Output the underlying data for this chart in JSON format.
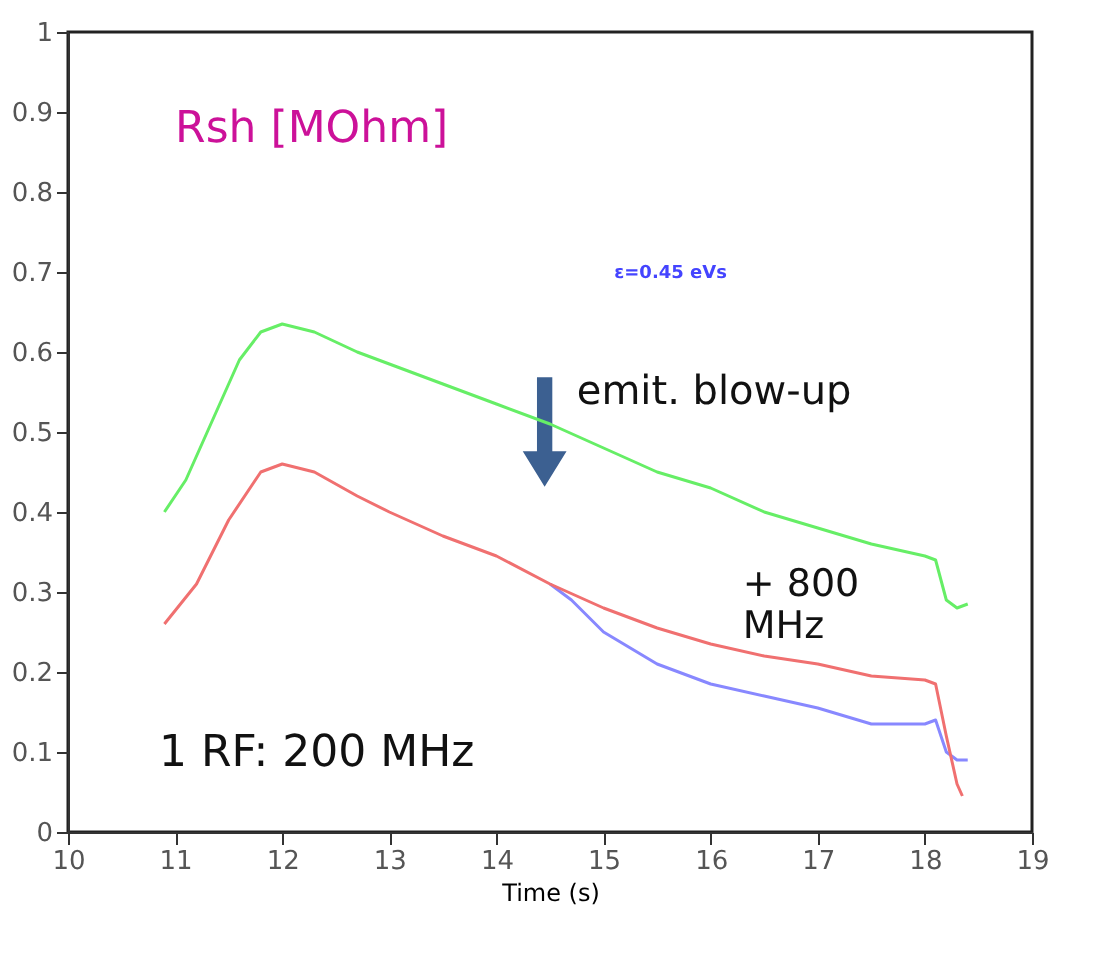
{
  "chart_data": {
    "type": "line",
    "xlabel": "Time (s)",
    "xlim": [
      10,
      19
    ],
    "xticks": [
      10,
      11,
      12,
      13,
      14,
      15,
      16,
      17,
      18,
      19
    ],
    "ylim": [
      0,
      1
    ],
    "yticks": [
      0,
      0.1,
      0.2,
      0.3,
      0.4,
      0.5,
      0.6,
      0.7,
      0.8,
      0.9,
      1
    ],
    "grid": false,
    "legend": false,
    "marker": "none",
    "line_style": "solid",
    "annotations": [
      "Rsh [MOhm]",
      "ε=0.45 eVs",
      "emit. blow-up",
      "+ 800 MHz",
      "1 RF: 200 MHz"
    ],
    "series": [
      {
        "color": "#66ee66",
        "x": [
          10.9,
          11.1,
          11.3,
          11.6,
          11.8,
          12.0,
          12.3,
          12.7,
          13.0,
          13.5,
          14.0,
          14.5,
          15.0,
          15.5,
          16.0,
          16.5,
          17.0,
          17.5,
          18.0,
          18.1,
          18.2,
          18.3,
          18.4
        ],
        "values": [
          0.4,
          0.44,
          0.5,
          0.59,
          0.625,
          0.635,
          0.625,
          0.6,
          0.585,
          0.56,
          0.535,
          0.51,
          0.48,
          0.45,
          0.43,
          0.4,
          0.38,
          0.36,
          0.345,
          0.34,
          0.29,
          0.28,
          0.285
        ]
      },
      {
        "color": "#8888ff",
        "x": [
          14.5,
          14.7,
          15.0,
          15.5,
          16.0,
          16.5,
          17.0,
          17.5,
          18.0,
          18.1,
          18.2,
          18.3,
          18.4
        ],
        "values": [
          0.31,
          0.29,
          0.25,
          0.21,
          0.185,
          0.17,
          0.155,
          0.135,
          0.135,
          0.14,
          0.1,
          0.09,
          0.09
        ]
      },
      {
        "color": "#f07070",
        "x": [
          10.9,
          11.2,
          11.5,
          11.8,
          12.0,
          12.3,
          12.7,
          13.0,
          13.5,
          14.0,
          14.5,
          15.0,
          15.5,
          16.0,
          16.5,
          17.0,
          17.5,
          18.0,
          18.1,
          18.2,
          18.3,
          18.35
        ],
        "values": [
          0.26,
          0.31,
          0.39,
          0.45,
          0.46,
          0.45,
          0.42,
          0.4,
          0.37,
          0.345,
          0.31,
          0.28,
          0.255,
          0.235,
          0.22,
          0.21,
          0.195,
          0.19,
          0.185,
          0.12,
          0.06,
          0.045
        ]
      }
    ]
  }
}
